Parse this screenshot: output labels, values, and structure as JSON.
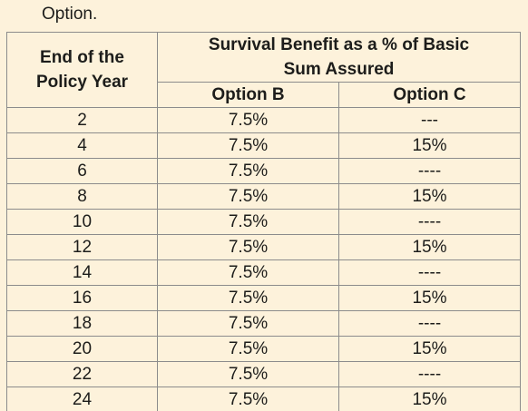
{
  "intro_text": "Option.",
  "table": {
    "year_header_line1": "End of the",
    "year_header_line2": "Policy Year",
    "benefit_header_line1": "Survival Benefit as a % of Basic",
    "benefit_header_line2": "Sum Assured",
    "option_b_header": "Option B",
    "option_c_header": "Option C",
    "rows": [
      {
        "year": "2",
        "option_b": "7.5%",
        "option_c": "---"
      },
      {
        "year": "4",
        "option_b": "7.5%",
        "option_c": "15%"
      },
      {
        "year": "6",
        "option_b": "7.5%",
        "option_c": "----"
      },
      {
        "year": "8",
        "option_b": "7.5%",
        "option_c": "15%"
      },
      {
        "year": "10",
        "option_b": "7.5%",
        "option_c": "----"
      },
      {
        "year": "12",
        "option_b": "7.5%",
        "option_c": "15%"
      },
      {
        "year": "14",
        "option_b": "7.5%",
        "option_c": "----"
      },
      {
        "year": "16",
        "option_b": "7.5%",
        "option_c": "15%"
      },
      {
        "year": "18",
        "option_b": "7.5%",
        "option_c": "----"
      },
      {
        "year": "20",
        "option_b": "7.5%",
        "option_c": "15%"
      },
      {
        "year": "22",
        "option_b": "7.5%",
        "option_c": "----"
      },
      {
        "year": "24",
        "option_b": "7.5%",
        "option_c": "15%"
      }
    ]
  }
}
